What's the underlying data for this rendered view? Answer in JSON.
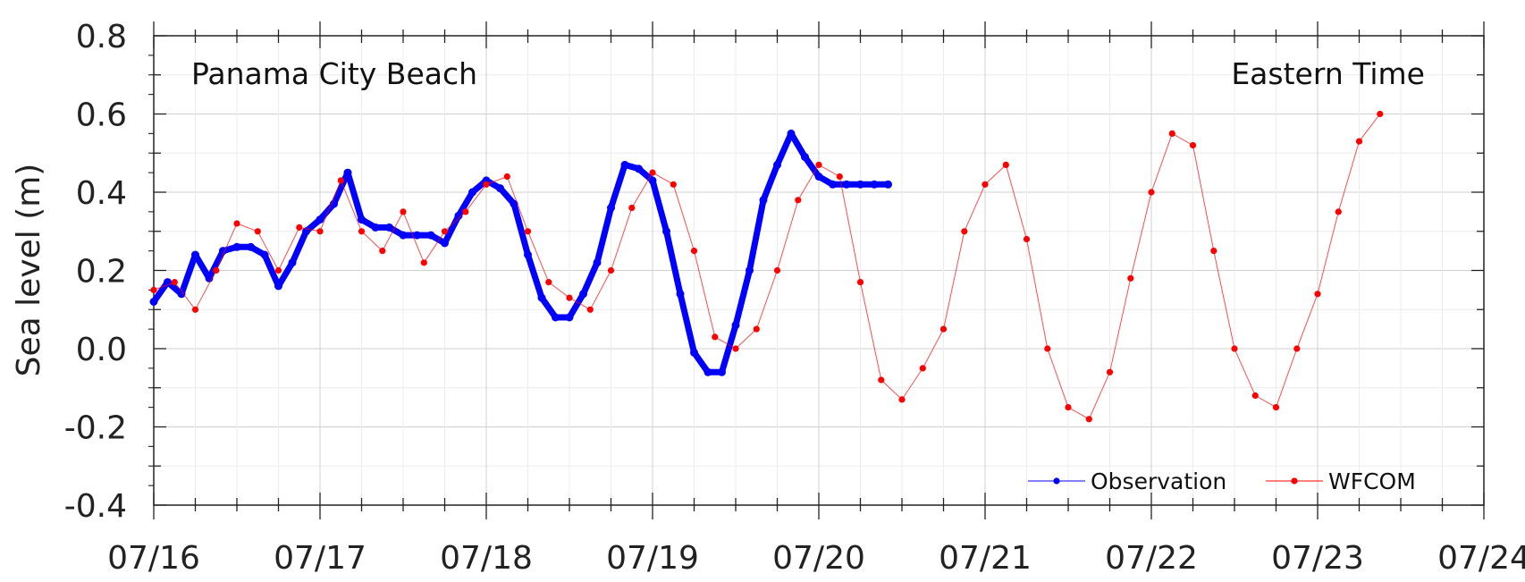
{
  "chart_data": {
    "type": "line",
    "title": "",
    "xlabel": "",
    "ylabel": "Sea level (m)",
    "xlim": [
      "07/16",
      "07/24"
    ],
    "ylim": [
      -0.4,
      0.8
    ],
    "yticks": [
      "0.8",
      "0.6",
      "0.4",
      "0.2",
      "0.0",
      "-0.2",
      "-0.4"
    ],
    "xticks": [
      "07/16",
      "07/17",
      "07/18",
      "07/19",
      "07/20",
      "07/21",
      "07/22",
      "07/23",
      "07/24"
    ],
    "grid": true,
    "legend_position": "bottom-right",
    "annotations": {
      "location": "Panama City Beach",
      "timezone": "Eastern Time"
    },
    "series": [
      {
        "name": "Observation",
        "color": "#0000ff",
        "x": [
          "07/16 00:00",
          "07/16 02:00",
          "07/16 04:00",
          "07/16 06:00",
          "07/16 08:00",
          "07/16 10:00",
          "07/16 12:00",
          "07/16 14:00",
          "07/16 16:00",
          "07/16 18:00",
          "07/16 20:00",
          "07/16 22:00",
          "07/17 00:00",
          "07/17 02:00",
          "07/17 04:00",
          "07/17 06:00",
          "07/17 08:00",
          "07/17 10:00",
          "07/17 12:00",
          "07/17 14:00",
          "07/17 16:00",
          "07/17 18:00",
          "07/17 20:00",
          "07/17 22:00",
          "07/18 00:00",
          "07/18 02:00",
          "07/18 04:00",
          "07/18 06:00",
          "07/18 08:00",
          "07/18 10:00",
          "07/18 12:00",
          "07/18 14:00",
          "07/18 16:00",
          "07/18 18:00",
          "07/18 20:00",
          "07/18 22:00",
          "07/19 00:00",
          "07/19 02:00",
          "07/19 04:00",
          "07/19 06:00",
          "07/19 08:00",
          "07/19 10:00",
          "07/19 12:00",
          "07/19 14:00",
          "07/19 16:00",
          "07/19 18:00",
          "07/19 20:00",
          "07/19 22:00",
          "07/20 00:00",
          "07/20 02:00",
          "07/20 04:00",
          "07/20 06:00",
          "07/20 08:00",
          "07/20 10:00"
        ],
        "values": [
          0.12,
          0.17,
          0.14,
          0.24,
          0.18,
          0.25,
          0.26,
          0.26,
          0.24,
          0.16,
          0.22,
          0.3,
          0.33,
          0.37,
          0.45,
          0.33,
          0.31,
          0.31,
          0.29,
          0.29,
          0.29,
          0.27,
          0.34,
          0.4,
          0.43,
          0.41,
          0.37,
          0.24,
          0.13,
          0.08,
          0.08,
          0.14,
          0.22,
          0.36,
          0.47,
          0.46,
          0.43,
          0.3,
          0.14,
          -0.01,
          -0.06,
          -0.06,
          0.06,
          0.2,
          0.38,
          0.47,
          0.55,
          0.49,
          0.44,
          0.42,
          0.42,
          0.42,
          0.42,
          0.42
        ]
      },
      {
        "name": "WFCOM",
        "color": "#ff0000",
        "x": [
          "07/16 00:00",
          "07/16 03:00",
          "07/16 06:00",
          "07/16 09:00",
          "07/16 12:00",
          "07/16 15:00",
          "07/16 18:00",
          "07/16 21:00",
          "07/17 00:00",
          "07/17 03:00",
          "07/17 06:00",
          "07/17 09:00",
          "07/17 12:00",
          "07/17 15:00",
          "07/17 18:00",
          "07/17 21:00",
          "07/18 00:00",
          "07/18 03:00",
          "07/18 06:00",
          "07/18 09:00",
          "07/18 12:00",
          "07/18 15:00",
          "07/18 18:00",
          "07/18 21:00",
          "07/19 00:00",
          "07/19 03:00",
          "07/19 06:00",
          "07/19 09:00",
          "07/19 12:00",
          "07/19 15:00",
          "07/19 18:00",
          "07/19 21:00",
          "07/20 00:00",
          "07/20 03:00",
          "07/20 06:00",
          "07/20 09:00",
          "07/20 12:00",
          "07/20 15:00",
          "07/20 18:00",
          "07/20 21:00",
          "07/21 00:00",
          "07/21 03:00",
          "07/21 06:00",
          "07/21 09:00",
          "07/21 12:00",
          "07/21 15:00",
          "07/21 18:00",
          "07/21 21:00",
          "07/22 00:00",
          "07/22 03:00",
          "07/22 06:00",
          "07/22 09:00",
          "07/22 12:00",
          "07/22 15:00",
          "07/22 18:00",
          "07/22 21:00",
          "07/23 00:00",
          "07/23 03:00",
          "07/23 06:00",
          "07/23 09:00"
        ],
        "values": [
          0.15,
          0.17,
          0.1,
          0.2,
          0.32,
          0.3,
          0.2,
          0.31,
          0.3,
          0.43,
          0.3,
          0.25,
          0.35,
          0.22,
          0.3,
          0.35,
          0.42,
          0.44,
          0.3,
          0.17,
          0.13,
          0.1,
          0.2,
          0.36,
          0.45,
          0.42,
          0.25,
          0.03,
          0.0,
          0.05,
          0.2,
          0.38,
          0.47,
          0.44,
          0.17,
          -0.08,
          -0.13,
          -0.05,
          0.05,
          0.3,
          0.42,
          0.47,
          0.28,
          0.0,
          -0.15,
          -0.18,
          -0.06,
          0.18,
          0.4,
          0.55,
          0.52,
          0.25,
          0.0,
          -0.12,
          -0.15,
          0.0,
          0.14,
          0.35,
          0.53,
          0.6
        ]
      }
    ]
  }
}
